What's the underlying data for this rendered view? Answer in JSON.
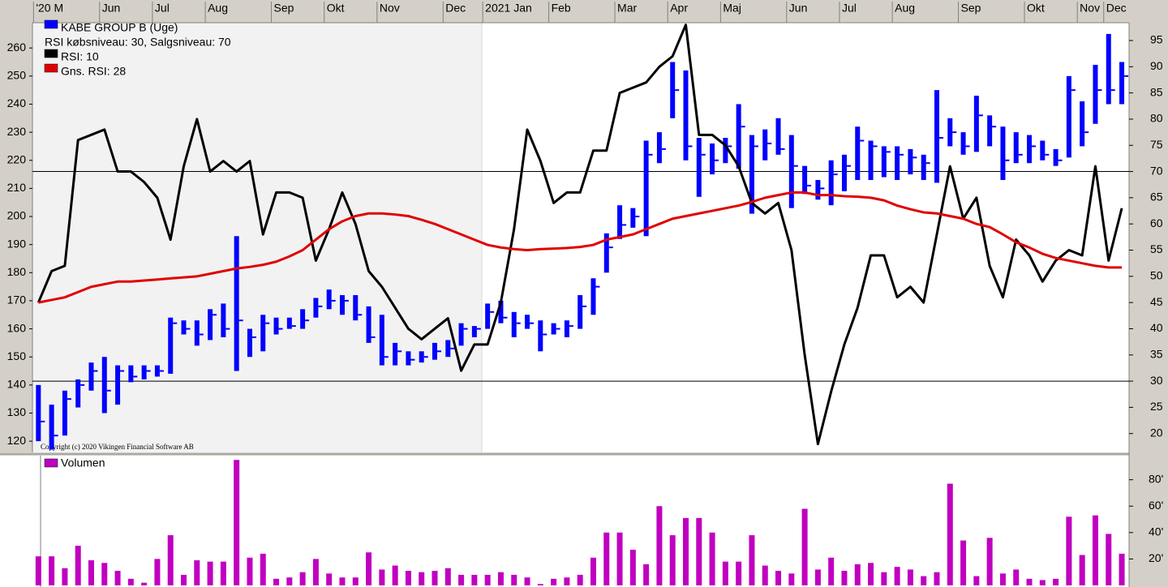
{
  "chart_data": [
    {
      "type": "ohlc",
      "legend_note": "RSI købsniveau: 30, Salgsniveau: 70",
      "copyright": "Copyright (c) 2020 Vikingen Financial Software AB",
      "categories": [
        "'20 M",
        null,
        null,
        null,
        null,
        "Jun",
        null,
        null,
        null,
        "Jul",
        null,
        null,
        null,
        "Aug",
        null,
        null,
        null,
        null,
        "Sep",
        null,
        null,
        null,
        "Okt",
        null,
        null,
        null,
        "Nov",
        null,
        null,
        null,
        null,
        "Dec",
        null,
        null,
        "2021 Jan",
        null,
        null,
        null,
        null,
        "Feb",
        null,
        null,
        null,
        null,
        "Mar",
        null,
        null,
        null,
        "Apr",
        null,
        null,
        null,
        "Maj",
        null,
        null,
        null,
        null,
        "Jun",
        null,
        null,
        null,
        "Jul",
        null,
        null,
        null,
        "Aug",
        null,
        null,
        null,
        null,
        "Sep",
        null,
        null,
        null,
        null,
        "Okt",
        null,
        null,
        null,
        "Nov",
        null,
        "Dec",
        null
      ],
      "series": [
        {
          "name": "KABE GROUP B (Uge)",
          "color": "#0000ff",
          "high": [
            140,
            133,
            138,
            142,
            148,
            150,
            147,
            147,
            147,
            147,
            164,
            163,
            163,
            167,
            169,
            193,
            160,
            165,
            164,
            164,
            167,
            171,
            174,
            172,
            172,
            168,
            165,
            155,
            152,
            152,
            155,
            156,
            162,
            161,
            169,
            170,
            166,
            165,
            163,
            162,
            163,
            172,
            178,
            194,
            204,
            203,
            227,
            230,
            255,
            252,
            228,
            226,
            228,
            240,
            229,
            231,
            235,
            229,
            218,
            213,
            220,
            222,
            232,
            227,
            225,
            225,
            224,
            222,
            245,
            235,
            230,
            243,
            236,
            232,
            230,
            229,
            227,
            224,
            250,
            241,
            254,
            265,
            255
          ],
          "low": [
            120,
            117,
            122,
            132,
            138,
            130,
            133,
            141,
            142,
            143,
            144,
            158,
            154,
            156,
            157,
            145,
            150,
            152,
            158,
            160,
            160,
            164,
            167,
            165,
            163,
            155,
            147,
            147,
            147,
            148,
            149,
            150,
            154,
            157,
            160,
            162,
            157,
            160,
            152,
            158,
            157,
            160,
            165,
            180,
            192,
            196,
            193,
            219,
            235,
            220,
            207,
            215,
            219,
            217,
            201,
            220,
            222,
            203,
            208,
            206,
            204,
            209,
            213,
            213,
            214,
            213,
            215,
            213,
            212,
            225,
            222,
            223,
            225,
            213,
            219,
            219,
            220,
            218,
            221,
            225,
            233,
            240,
            240
          ],
          "close": [
            127,
            122,
            135,
            140,
            145,
            138,
            145,
            143,
            145,
            145,
            162,
            160,
            158,
            165,
            160,
            163,
            157,
            162,
            160,
            161,
            163,
            168,
            170,
            170,
            165,
            157,
            150,
            152,
            149,
            150,
            152,
            153,
            160,
            160,
            166,
            164,
            162,
            162,
            158,
            160,
            161,
            168,
            175,
            189,
            197,
            200,
            222,
            224,
            245,
            225,
            222,
            220,
            225,
            232,
            225,
            226,
            224,
            218,
            211,
            210,
            215,
            218,
            227,
            225,
            223,
            222,
            221,
            219,
            228,
            230,
            225,
            236,
            232,
            220,
            222,
            225,
            222,
            220,
            245,
            230,
            245,
            245,
            250
          ]
        },
        {
          "name": "RSI: 10",
          "color": "#000000",
          "axis": "y2",
          "values": [
            45,
            51,
            52,
            76,
            77,
            78,
            70,
            70,
            68,
            65,
            57,
            71,
            80,
            70,
            72,
            70,
            72,
            58,
            66,
            66,
            65,
            53,
            59,
            66,
            60,
            51,
            48,
            44,
            40,
            38,
            40,
            42,
            32,
            37,
            37,
            45,
            59,
            78,
            72,
            64,
            66,
            66,
            74,
            74,
            85,
            86,
            87,
            90,
            92,
            98,
            77,
            77,
            75,
            71,
            64,
            62,
            64,
            55,
            35,
            18,
            28,
            37,
            44,
            54,
            54,
            46,
            48,
            45,
            58,
            71,
            61,
            65,
            52,
            46,
            57,
            54,
            49,
            53,
            55,
            54,
            71,
            53,
            63
          ]
        },
        {
          "name": "Gns. RSI: 28",
          "color": "#e00000",
          "axis": "y2",
          "values": [
            45,
            45.5,
            46,
            47,
            48,
            48.5,
            49,
            49,
            49.2,
            49.4,
            49.6,
            49.8,
            50,
            50.5,
            51,
            51.5,
            51.8,
            52.2,
            52.8,
            53.8,
            55,
            57,
            59,
            60.5,
            61.5,
            62,
            62,
            61.8,
            61.5,
            60.8,
            60,
            59,
            58,
            57,
            56,
            55.5,
            55.2,
            55,
            55.2,
            55.3,
            55.4,
            55.6,
            56,
            57,
            57.5,
            58,
            59,
            60,
            61,
            61.5,
            62,
            62.5,
            63,
            63.5,
            64.2,
            65,
            65.5,
            66,
            66,
            65.5,
            65.5,
            65.3,
            65.2,
            65,
            64.5,
            63.5,
            62.8,
            62.2,
            62,
            61.5,
            61,
            60,
            59.4,
            58,
            56.5,
            55.5,
            54.3,
            53.5,
            53,
            52.5,
            52,
            51.7,
            51.7
          ]
        }
      ],
      "ylim": [
        116,
        269
      ],
      "yticks": [
        120,
        130,
        140,
        150,
        160,
        170,
        180,
        190,
        200,
        210,
        220,
        230,
        240,
        250,
        260
      ],
      "y2lim": [
        16.4,
        98.4
      ],
      "y2ticks": [
        20,
        25,
        30,
        35,
        40,
        45,
        50,
        55,
        60,
        65,
        70,
        75,
        80,
        85,
        90,
        95
      ],
      "y2_levels": [
        30,
        70
      ]
    },
    {
      "type": "bar",
      "series": [
        {
          "name": "Volumen",
          "color": "#c000c0",
          "values": [
            22,
            22,
            13,
            30,
            19,
            17,
            11,
            5,
            2,
            20,
            38,
            8,
            19,
            18,
            18,
            95,
            21,
            24,
            5,
            6,
            10,
            20,
            9,
            6,
            6,
            25,
            12,
            15,
            11,
            10,
            11,
            13,
            8,
            8,
            8,
            10,
            8,
            6,
            1,
            5,
            6,
            8,
            21,
            40,
            40,
            27,
            16,
            60,
            38,
            51,
            51,
            40,
            18,
            18,
            38,
            15,
            11,
            9,
            58,
            12,
            21,
            11,
            16,
            17,
            10,
            14,
            12,
            7,
            10,
            77,
            34,
            7,
            36,
            9,
            12,
            5,
            4,
            5,
            52,
            23,
            53,
            39,
            24
          ]
        }
      ],
      "ylim": [
        0,
        97
      ],
      "yticks": [
        {
          "value": 20,
          "label": "20'"
        },
        {
          "value": 40,
          "label": "40'"
        },
        {
          "value": 60,
          "label": "60'"
        },
        {
          "value": 80,
          "label": "80'"
        }
      ]
    }
  ]
}
